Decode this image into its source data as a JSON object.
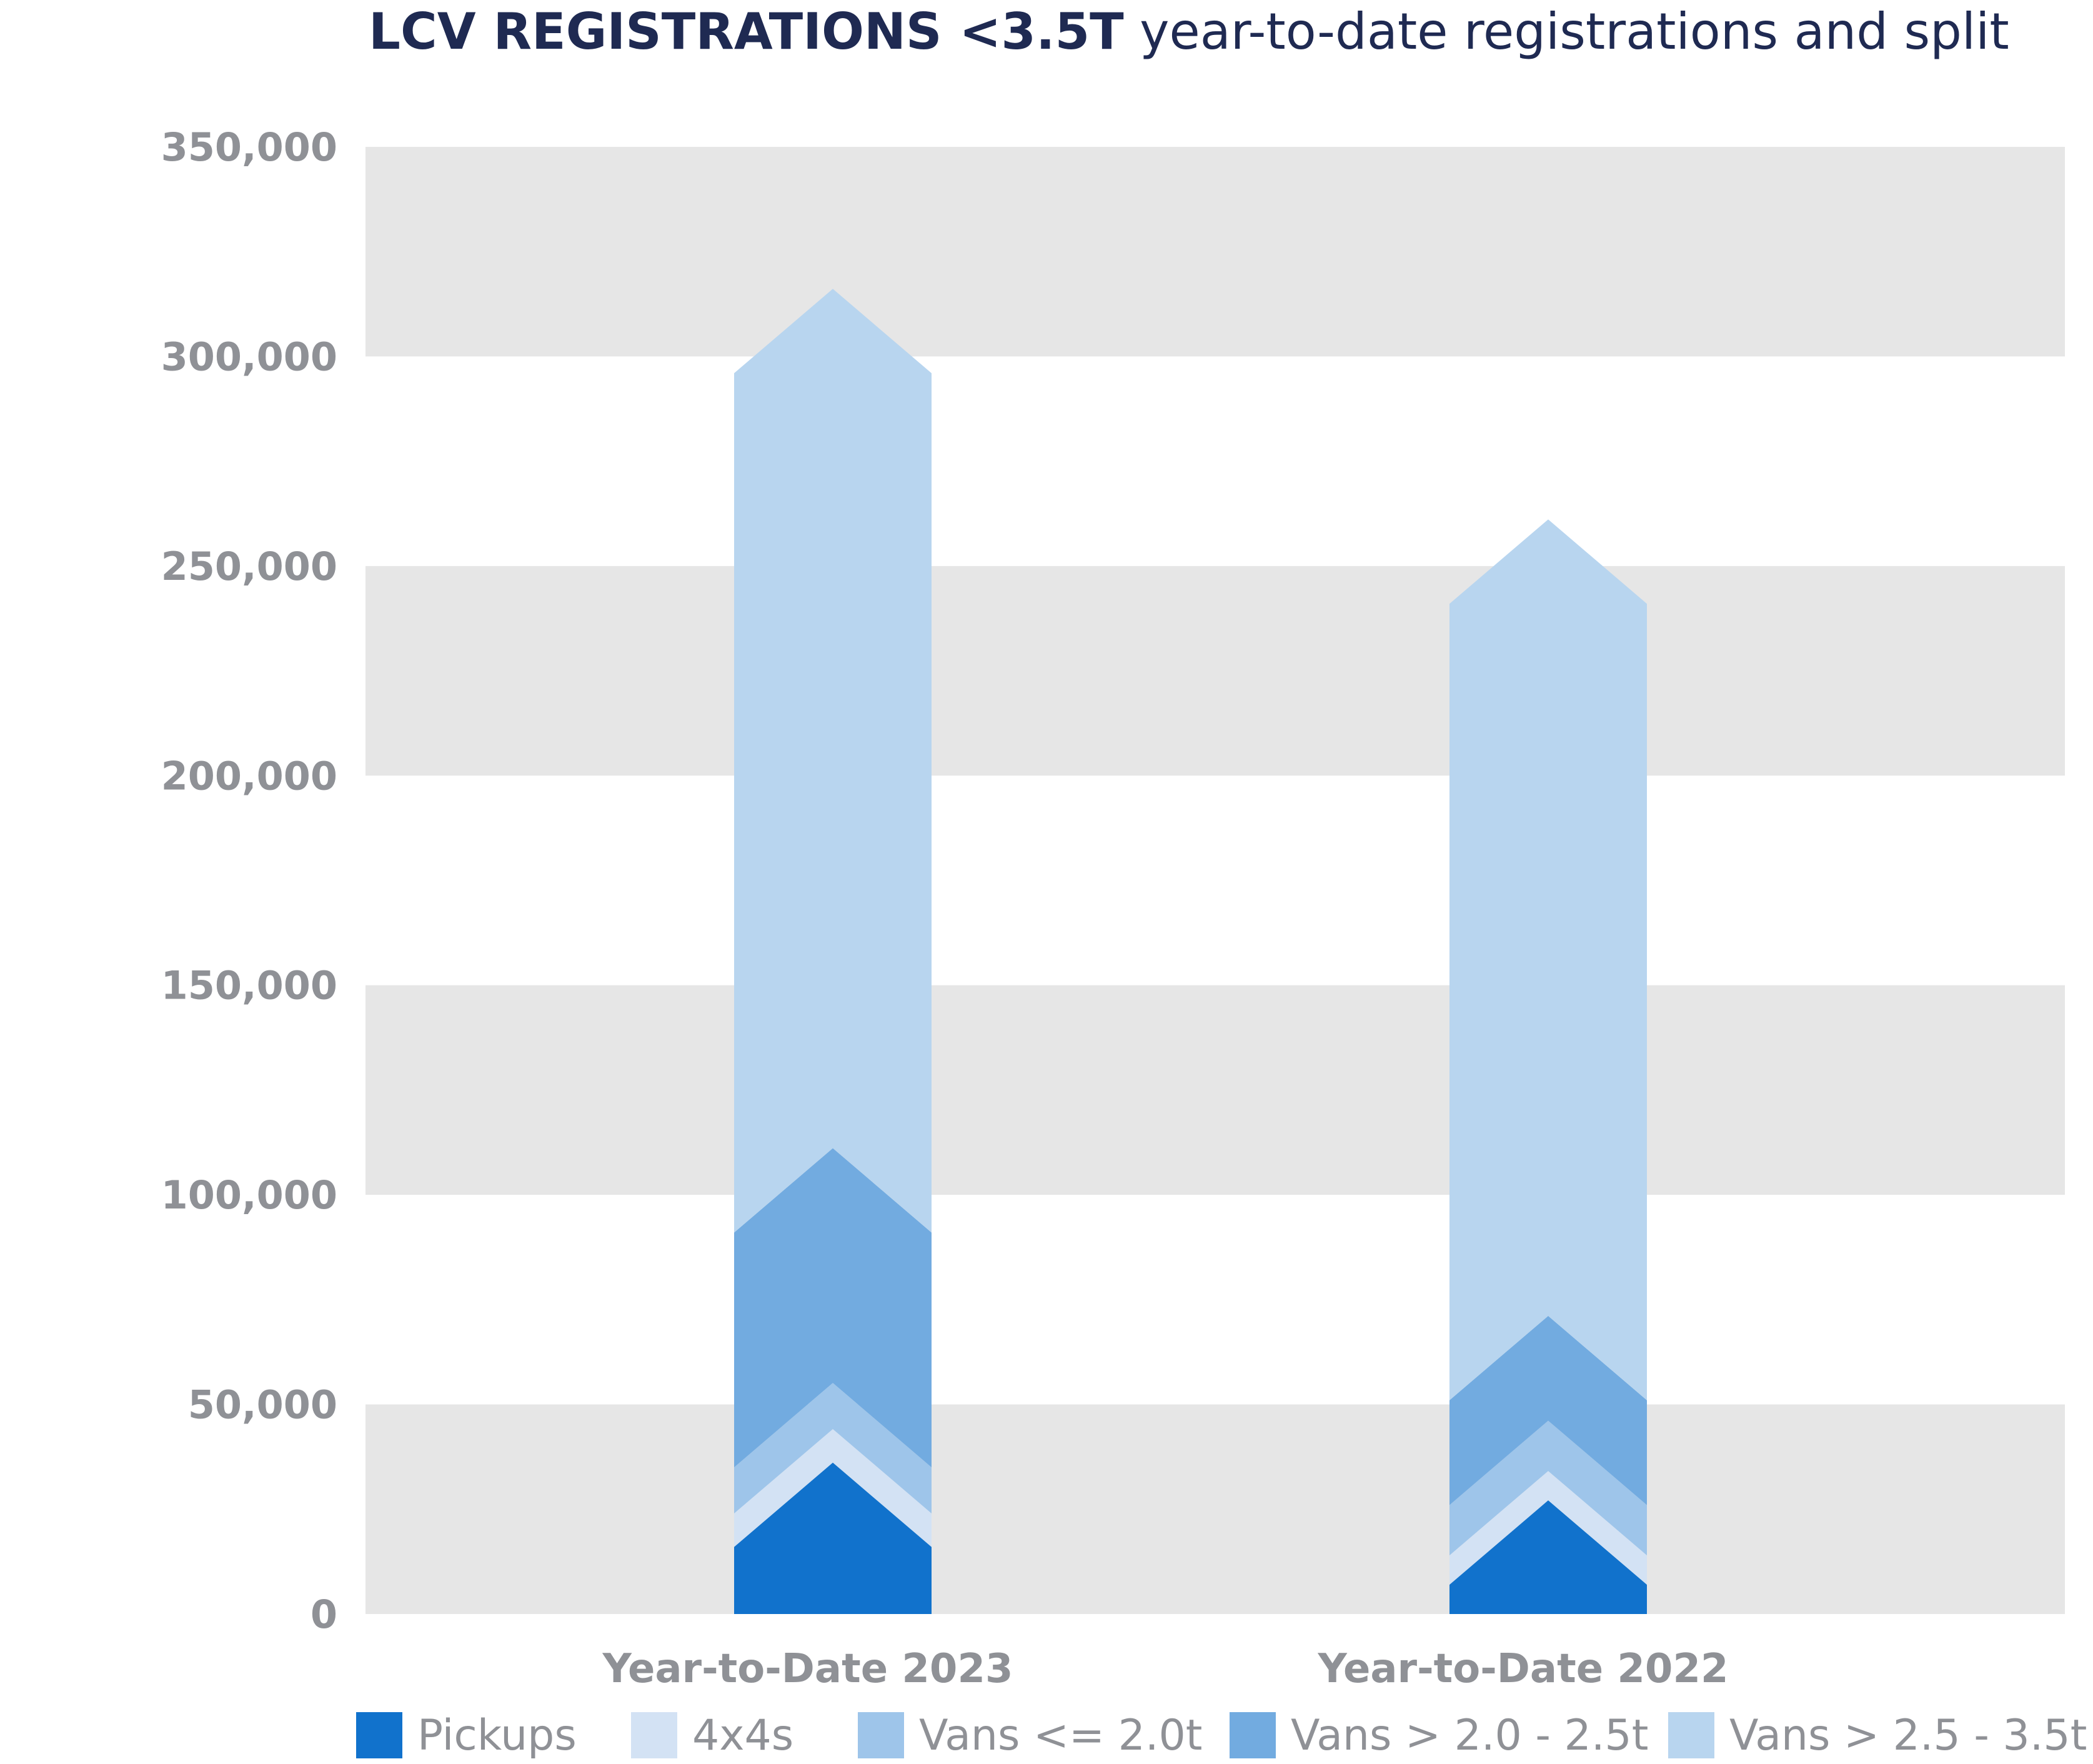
{
  "chart_data": {
    "type": "bar",
    "stacked": true,
    "title_bold": "LCV REGISTRATIONS <3.5T",
    "title_rest": " year-to-date registrations and split",
    "categories": [
      "Year-to-Date 2023",
      "Year-to-Date 2022"
    ],
    "ylim": [
      0,
      350000
    ],
    "yticks": [
      "0",
      "50,000",
      "100,000",
      "150,000",
      "200,000",
      "250,000",
      "300,000",
      "350,000"
    ],
    "series": [
      {
        "name": "Pickups",
        "color": "#1172cc",
        "values": [
          16000,
          7000
        ]
      },
      {
        "name": "4x4s",
        "color": "#d3e2f4",
        "values": [
          8000,
          7000
        ]
      },
      {
        "name": "Vans <= 2.0t",
        "color": "#9ec5ea",
        "values": [
          11000,
          12000
        ]
      },
      {
        "name": "Vans > 2.0 - 2.5t",
        "color": "#72abe0",
        "values": [
          56000,
          25000
        ]
      },
      {
        "name": "Vans > 2.5 - 3.5t",
        "color": "#b8d5ef",
        "values": [
          205000,
          190000
        ]
      }
    ],
    "grid_bands": true,
    "legend_position": "bottom"
  }
}
